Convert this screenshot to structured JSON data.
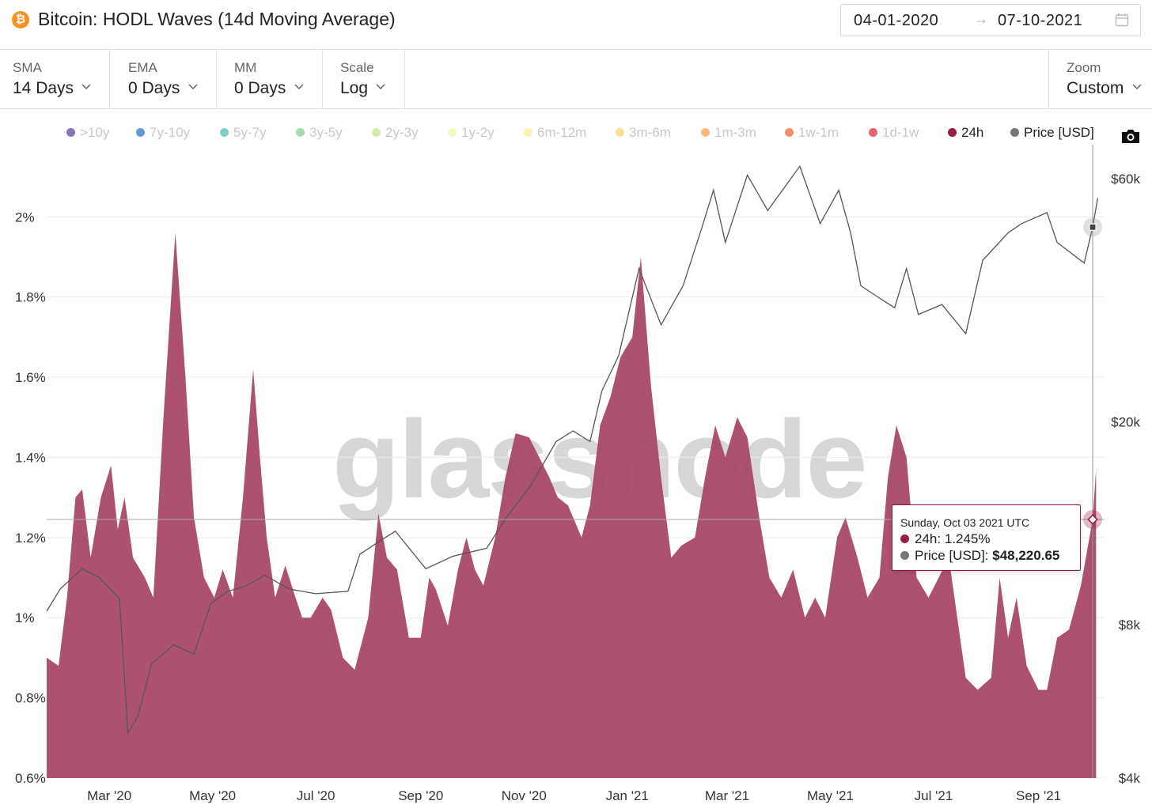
{
  "header": {
    "icon": "bitcoin-icon",
    "icon_glyph": "₿",
    "title": "Bitcoin: HODL Waves (14d Moving Average)",
    "date_start": "04-01-2020",
    "date_arrow": "→",
    "date_end": "07-10-2021"
  },
  "controls": [
    {
      "label": "SMA",
      "value": "14 Days"
    },
    {
      "label": "EMA",
      "value": "0 Days"
    },
    {
      "label": "MM",
      "value": "0 Days"
    },
    {
      "label": "Scale",
      "value": "Log"
    }
  ],
  "zoom": {
    "label": "Zoom",
    "value": "Custom"
  },
  "legend": [
    {
      "label": ">10y",
      "color": "#6a51a3",
      "active": false
    },
    {
      "label": "7y-10y",
      "color": "#3f7fc4",
      "active": false
    },
    {
      "label": "5y-7y",
      "color": "#5ec4b6",
      "active": false
    },
    {
      "label": "3y-5y",
      "color": "#8fd19e",
      "active": false
    },
    {
      "label": "2y-3y",
      "color": "#c6e79a",
      "active": false
    },
    {
      "label": "1y-2y",
      "color": "#f3f7b0",
      "active": false
    },
    {
      "label": "6m-12m",
      "color": "#fbeea0",
      "active": false
    },
    {
      "label": "3m-6m",
      "color": "#fdd67a",
      "active": false
    },
    {
      "label": "1m-3m",
      "color": "#f9a95b",
      "active": false
    },
    {
      "label": "1w-1m",
      "color": "#f07045",
      "active": false
    },
    {
      "label": "1d-1w",
      "color": "#dc3d4b",
      "active": false
    },
    {
      "label": "24h",
      "color": "#9b1b45",
      "active": true
    },
    {
      "label": "Price [USD]",
      "color": "#777777",
      "active": true
    }
  ],
  "tooltip": {
    "date": "Sunday, Oct 03 2021 UTC",
    "series_label": "24h:",
    "series_value": "1.245%",
    "price_label": "Price [USD]:",
    "price_value": "$48,220.65",
    "series_color": "#9b1b45",
    "price_color": "#777777"
  },
  "watermark": "glassnode",
  "colors": {
    "area_fill": "#a8486a",
    "price_line": "#555555",
    "accent": "#8c1d40"
  },
  "chart_data": {
    "type": "area",
    "title": "Bitcoin: HODL Waves (14d Moving Average)",
    "x_start": "2020-01-24",
    "x_end": "2021-10-10",
    "x_ticks": [
      {
        "date": "2020-03-01",
        "label": "Mar '20"
      },
      {
        "date": "2020-05-01",
        "label": "May '20"
      },
      {
        "date": "2020-07-01",
        "label": "Jul '20"
      },
      {
        "date": "2020-09-01",
        "label": "Sep '20"
      },
      {
        "date": "2020-11-01",
        "label": "Nov '20"
      },
      {
        "date": "2021-01-01",
        "label": "Jan '21"
      },
      {
        "date": "2021-03-01",
        "label": "Mar '21"
      },
      {
        "date": "2021-05-01",
        "label": "May '21"
      },
      {
        "date": "2021-07-01",
        "label": "Jul '21"
      },
      {
        "date": "2021-09-01",
        "label": "Sep '21"
      }
    ],
    "y_left": {
      "range": [
        0.6,
        2.18
      ],
      "ticks": [
        0.6,
        0.8,
        1.0,
        1.2,
        1.4,
        1.6,
        1.8,
        2.0
      ],
      "tick_labels": [
        "0.6%",
        "0.8%",
        "1%",
        "1.2%",
        "1.4%",
        "1.6%",
        "1.8%",
        "2%"
      ]
    },
    "y_right": {
      "scale": "log",
      "range": [
        4000,
        70000
      ],
      "ticks": [
        4000,
        8000,
        20000,
        60000
      ],
      "tick_labels": [
        "$4k",
        "$8k",
        "$20k",
        "$60k"
      ]
    },
    "grid": true,
    "legend_position": "top",
    "series": [
      {
        "name": "24h",
        "axis": "left",
        "type": "area",
        "points": [
          [
            "2020-01-24",
            0.9
          ],
          [
            "2020-01-31",
            0.88
          ],
          [
            "2020-02-05",
            1.05
          ],
          [
            "2020-02-10",
            1.3
          ],
          [
            "2020-02-14",
            1.32
          ],
          [
            "2020-02-19",
            1.15
          ],
          [
            "2020-02-25",
            1.3
          ],
          [
            "2020-03-02",
            1.38
          ],
          [
            "2020-03-06",
            1.22
          ],
          [
            "2020-03-10",
            1.3
          ],
          [
            "2020-03-15",
            1.15
          ],
          [
            "2020-03-22",
            1.1
          ],
          [
            "2020-03-27",
            1.05
          ],
          [
            "2020-04-02",
            1.5
          ],
          [
            "2020-04-09",
            1.96
          ],
          [
            "2020-04-15",
            1.6
          ],
          [
            "2020-04-20",
            1.25
          ],
          [
            "2020-04-26",
            1.1
          ],
          [
            "2020-05-02",
            1.05
          ],
          [
            "2020-05-07",
            1.12
          ],
          [
            "2020-05-13",
            1.05
          ],
          [
            "2020-05-19",
            1.3
          ],
          [
            "2020-05-25",
            1.62
          ],
          [
            "2020-05-29",
            1.4
          ],
          [
            "2020-06-02",
            1.2
          ],
          [
            "2020-06-07",
            1.05
          ],
          [
            "2020-06-13",
            1.13
          ],
          [
            "2020-06-19",
            1.05
          ],
          [
            "2020-06-23",
            1.0
          ],
          [
            "2020-06-28",
            1.0
          ],
          [
            "2020-07-05",
            1.05
          ],
          [
            "2020-07-10",
            1.02
          ],
          [
            "2020-07-17",
            0.9
          ],
          [
            "2020-07-24",
            0.87
          ],
          [
            "2020-08-01",
            1.0
          ],
          [
            "2020-08-07",
            1.26
          ],
          [
            "2020-08-12",
            1.15
          ],
          [
            "2020-08-18",
            1.12
          ],
          [
            "2020-08-25",
            0.95
          ],
          [
            "2020-09-01",
            0.95
          ],
          [
            "2020-09-06",
            1.1
          ],
          [
            "2020-09-10",
            1.07
          ],
          [
            "2020-09-17",
            0.98
          ],
          [
            "2020-09-23",
            1.12
          ],
          [
            "2020-09-28",
            1.2
          ],
          [
            "2020-10-03",
            1.12
          ],
          [
            "2020-10-08",
            1.08
          ],
          [
            "2020-10-15",
            1.2
          ],
          [
            "2020-10-21",
            1.35
          ],
          [
            "2020-10-27",
            1.46
          ],
          [
            "2020-11-04",
            1.45
          ],
          [
            "2020-11-10",
            1.4
          ],
          [
            "2020-11-16",
            1.35
          ],
          [
            "2020-11-21",
            1.3
          ],
          [
            "2020-11-27",
            1.28
          ],
          [
            "2020-12-05",
            1.2
          ],
          [
            "2020-12-10",
            1.28
          ],
          [
            "2020-12-16",
            1.48
          ],
          [
            "2020-12-22",
            1.55
          ],
          [
            "2020-12-28",
            1.65
          ],
          [
            "2021-01-04",
            1.7
          ],
          [
            "2021-01-09",
            1.9
          ],
          [
            "2021-01-15",
            1.58
          ],
          [
            "2021-01-21",
            1.35
          ],
          [
            "2021-01-27",
            1.15
          ],
          [
            "2021-02-02",
            1.18
          ],
          [
            "2021-02-10",
            1.2
          ],
          [
            "2021-02-16",
            1.35
          ],
          [
            "2021-02-22",
            1.48
          ],
          [
            "2021-02-28",
            1.4
          ],
          [
            "2021-03-07",
            1.5
          ],
          [
            "2021-03-13",
            1.45
          ],
          [
            "2021-03-20",
            1.25
          ],
          [
            "2021-03-26",
            1.1
          ],
          [
            "2021-04-02",
            1.05
          ],
          [
            "2021-04-09",
            1.12
          ],
          [
            "2021-04-16",
            1.0
          ],
          [
            "2021-04-22",
            1.05
          ],
          [
            "2021-04-28",
            1.0
          ],
          [
            "2021-05-05",
            1.2
          ],
          [
            "2021-05-10",
            1.25
          ],
          [
            "2021-05-17",
            1.15
          ],
          [
            "2021-05-23",
            1.05
          ],
          [
            "2021-05-30",
            1.1
          ],
          [
            "2021-06-04",
            1.35
          ],
          [
            "2021-06-09",
            1.48
          ],
          [
            "2021-06-15",
            1.4
          ],
          [
            "2021-06-21",
            1.1
          ],
          [
            "2021-06-28",
            1.05
          ],
          [
            "2021-07-04",
            1.1
          ],
          [
            "2021-07-10",
            1.15
          ],
          [
            "2021-07-15",
            1.0
          ],
          [
            "2021-07-20",
            0.85
          ],
          [
            "2021-07-27",
            0.82
          ],
          [
            "2021-08-04",
            0.85
          ],
          [
            "2021-08-09",
            1.1
          ],
          [
            "2021-08-14",
            0.95
          ],
          [
            "2021-08-19",
            1.05
          ],
          [
            "2021-08-25",
            0.88
          ],
          [
            "2021-09-01",
            0.82
          ],
          [
            "2021-09-06",
            0.82
          ],
          [
            "2021-09-12",
            0.95
          ],
          [
            "2021-09-19",
            0.97
          ],
          [
            "2021-09-26",
            1.08
          ],
          [
            "2021-10-03",
            1.245
          ],
          [
            "2021-10-05",
            1.37
          ]
        ]
      },
      {
        "name": "Price [USD]",
        "axis": "right",
        "type": "line",
        "points": [
          [
            "2020-01-24",
            8500
          ],
          [
            "2020-02-01",
            9400
          ],
          [
            "2020-02-14",
            10300
          ],
          [
            "2020-02-24",
            9900
          ],
          [
            "2020-03-07",
            9000
          ],
          [
            "2020-03-12",
            4900
          ],
          [
            "2020-03-18",
            5300
          ],
          [
            "2020-03-26",
            6700
          ],
          [
            "2020-04-08",
            7300
          ],
          [
            "2020-04-20",
            7000
          ],
          [
            "2020-04-30",
            8800
          ],
          [
            "2020-05-10",
            9300
          ],
          [
            "2020-05-20",
            9500
          ],
          [
            "2020-06-01",
            10000
          ],
          [
            "2020-06-15",
            9400
          ],
          [
            "2020-07-01",
            9200
          ],
          [
            "2020-07-20",
            9300
          ],
          [
            "2020-07-27",
            11000
          ],
          [
            "2020-08-10",
            11800
          ],
          [
            "2020-08-17",
            12200
          ],
          [
            "2020-09-04",
            10300
          ],
          [
            "2020-09-20",
            10900
          ],
          [
            "2020-10-10",
            11300
          ],
          [
            "2020-10-21",
            12900
          ],
          [
            "2020-11-05",
            15000
          ],
          [
            "2020-11-20",
            18300
          ],
          [
            "2020-11-30",
            19200
          ],
          [
            "2020-12-10",
            18300
          ],
          [
            "2020-12-17",
            23000
          ],
          [
            "2020-12-27",
            27000
          ],
          [
            "2021-01-08",
            40000
          ],
          [
            "2021-01-21",
            31000
          ],
          [
            "2021-02-03",
            37000
          ],
          [
            "2021-02-14",
            48000
          ],
          [
            "2021-02-21",
            57000
          ],
          [
            "2021-02-28",
            45000
          ],
          [
            "2021-03-13",
            61000
          ],
          [
            "2021-03-25",
            52000
          ],
          [
            "2021-04-13",
            63500
          ],
          [
            "2021-04-25",
            49000
          ],
          [
            "2021-05-06",
            57000
          ],
          [
            "2021-05-13",
            47000
          ],
          [
            "2021-05-19",
            37000
          ],
          [
            "2021-05-30",
            35000
          ],
          [
            "2021-06-08",
            33500
          ],
          [
            "2021-06-15",
            40000
          ],
          [
            "2021-06-22",
            32500
          ],
          [
            "2021-07-06",
            34000
          ],
          [
            "2021-07-20",
            29800
          ],
          [
            "2021-07-30",
            41500
          ],
          [
            "2021-08-14",
            47000
          ],
          [
            "2021-08-22",
            49000
          ],
          [
            "2021-09-06",
            51500
          ],
          [
            "2021-09-12",
            45000
          ],
          [
            "2021-09-28",
            41000
          ],
          [
            "2021-10-03",
            48220.65
          ],
          [
            "2021-10-06",
            55000
          ]
        ]
      }
    ],
    "highlight": {
      "date": "2021-10-03",
      "series_value": 1.245,
      "price": 48220.65
    }
  }
}
